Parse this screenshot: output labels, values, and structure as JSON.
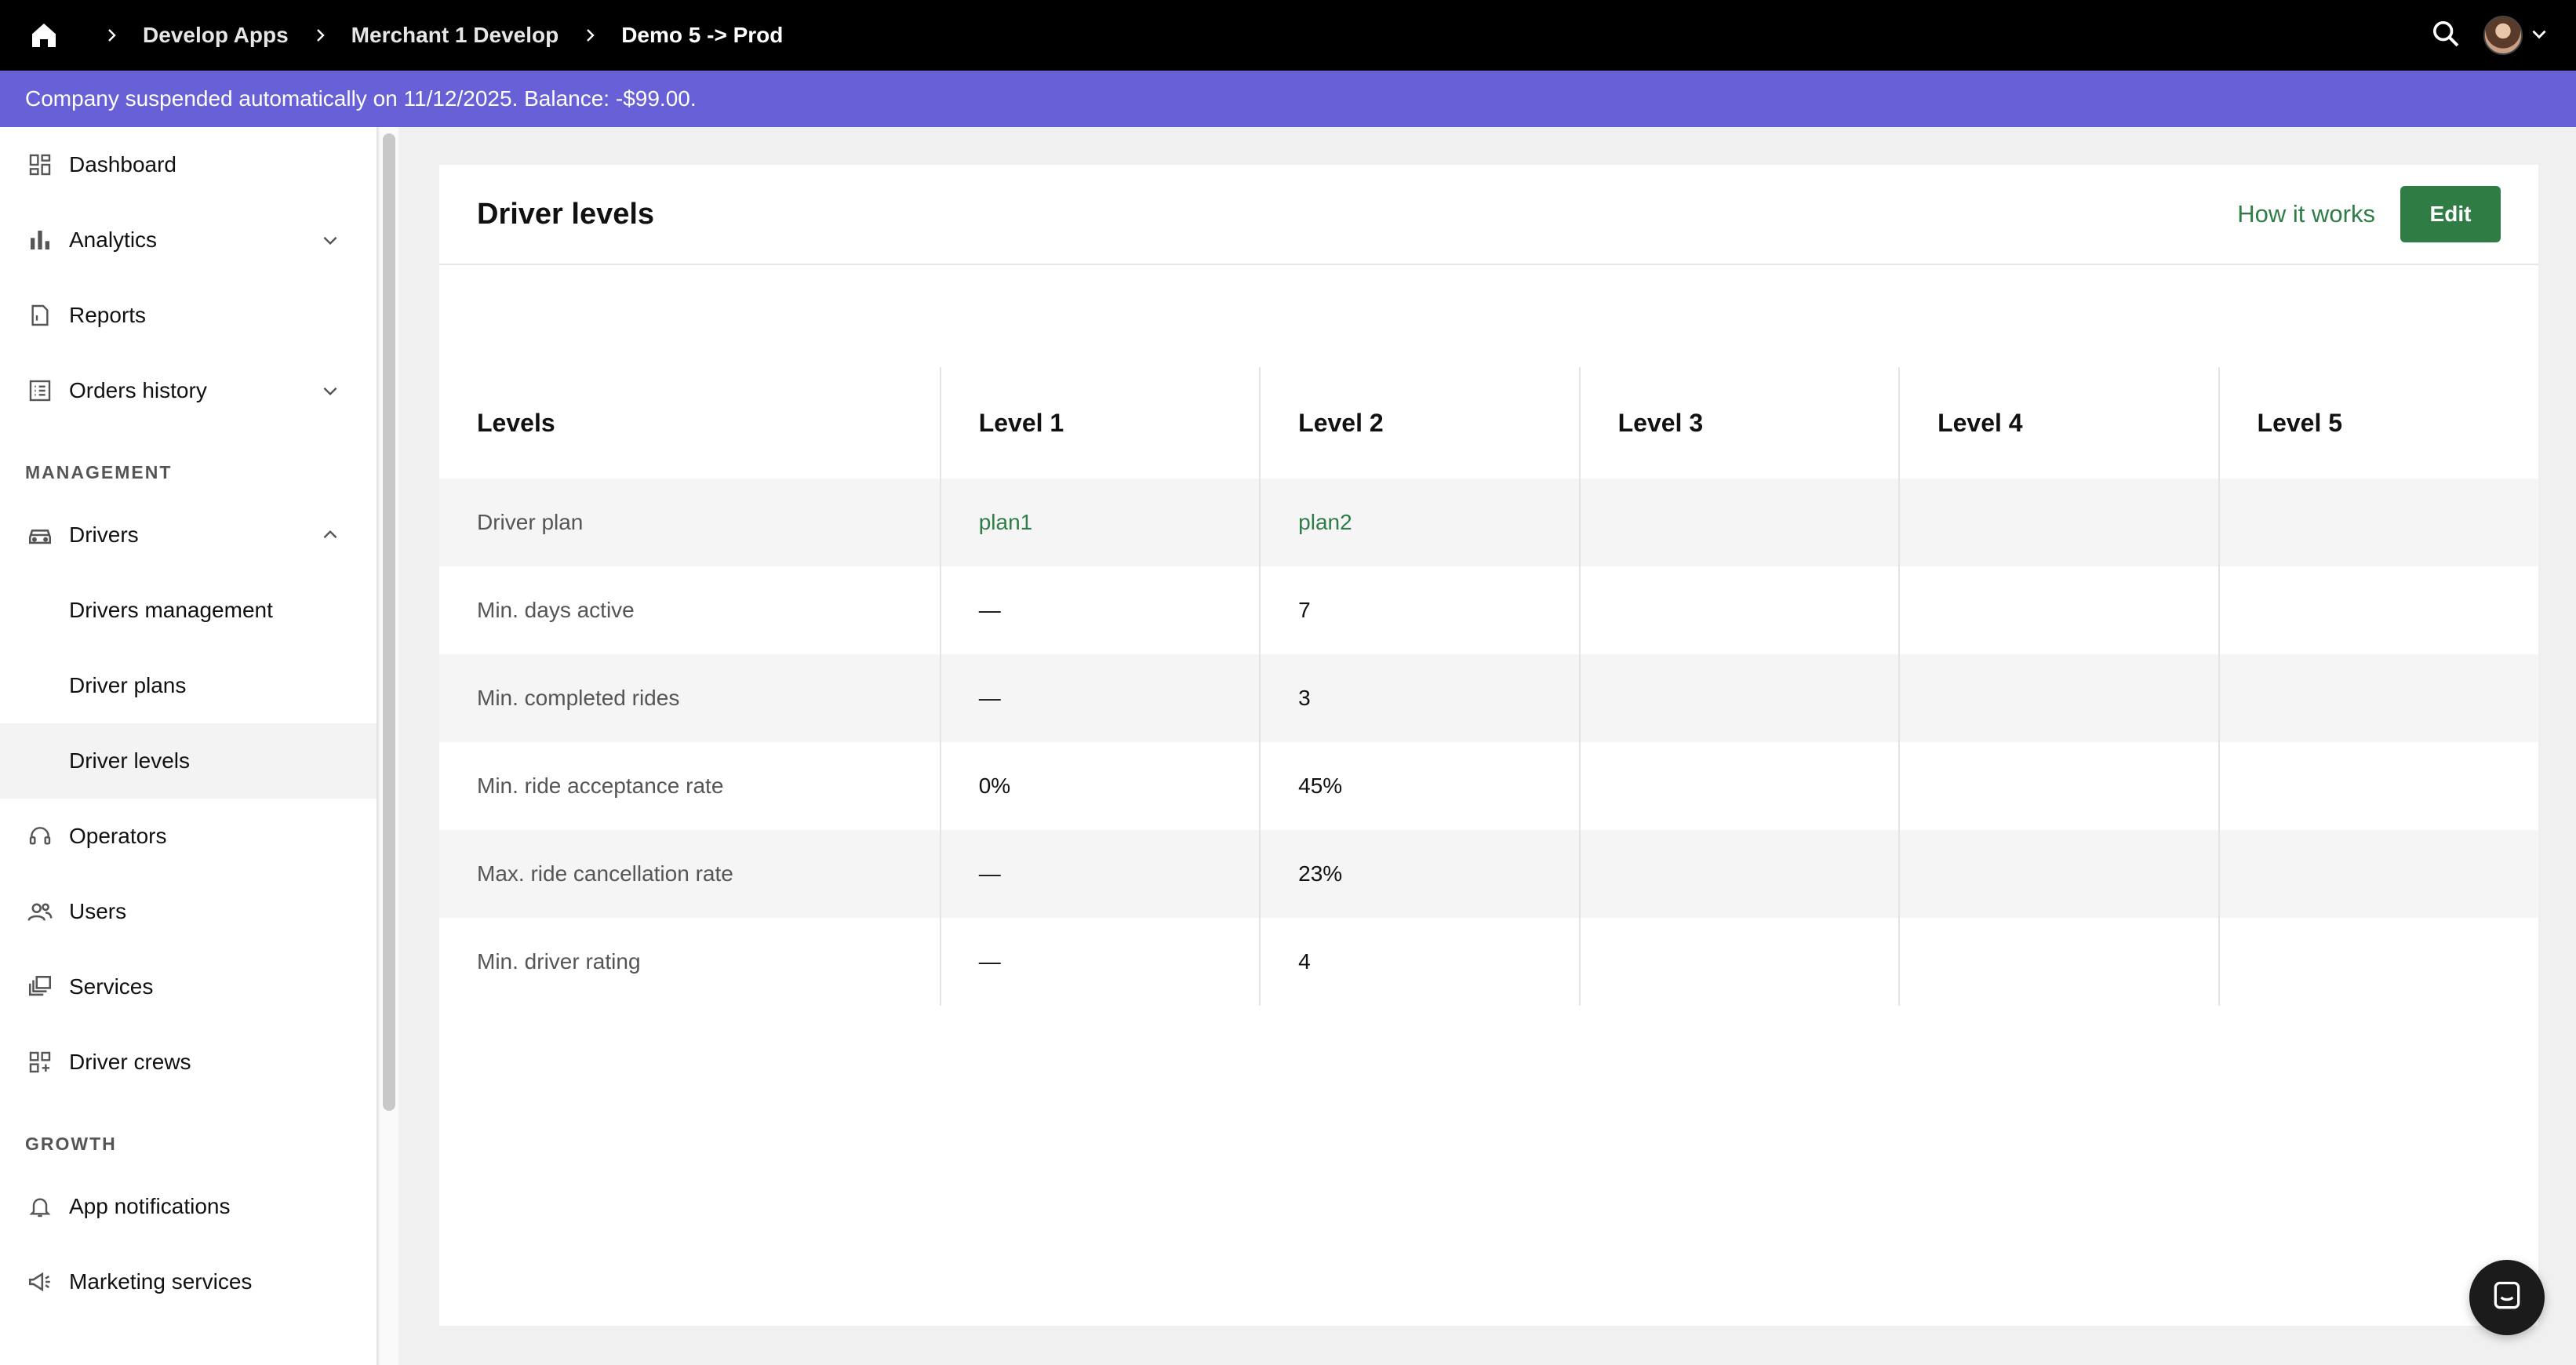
{
  "breadcrumbs": [
    "Develop Apps",
    "Merchant 1 Develop",
    "Demo 5 -> Prod"
  ],
  "banner": "Company suspended automatically on 11/12/2025. Balance: -$99.00.",
  "sidebar": {
    "items_top": [
      {
        "label": "Dashboard",
        "icon": "dashboard-icon"
      },
      {
        "label": "Analytics",
        "icon": "bar-chart-icon"
      },
      {
        "label": "Reports",
        "icon": "report-icon"
      },
      {
        "label": "Orders history",
        "icon": "list-icon"
      }
    ],
    "management_label": "MANAGEMENT",
    "items_management": [
      {
        "label": "Drivers",
        "icon": "car-icon"
      },
      {
        "label": "Drivers management"
      },
      {
        "label": "Driver plans"
      },
      {
        "label": "Driver levels"
      },
      {
        "label": "Operators",
        "icon": "headset-icon"
      },
      {
        "label": "Users",
        "icon": "users-icon"
      },
      {
        "label": "Services",
        "icon": "services-icon"
      },
      {
        "label": "Driver crews",
        "icon": "grid-plus-icon"
      }
    ],
    "growth_label": "GROWTH",
    "items_growth": [
      {
        "label": "App notifications",
        "icon": "bell-icon"
      },
      {
        "label": "Marketing services",
        "icon": "megaphone-icon"
      }
    ]
  },
  "page": {
    "title": "Driver levels",
    "how_it_works": "How it works",
    "edit": "Edit"
  },
  "table": {
    "headers": [
      "Levels",
      "Level 1",
      "Level 2",
      "Level 3",
      "Level 4",
      "Level 5"
    ],
    "rows": [
      {
        "label": "Driver plan",
        "l1": "plan1",
        "l2": "plan2"
      },
      {
        "label": "Min. days active",
        "l1": "—",
        "l2": "7"
      },
      {
        "label": "Min. completed rides",
        "l1": "—",
        "l2": "3"
      },
      {
        "label": "Min. ride acceptance rate",
        "l1": "0%",
        "l2": "45%"
      },
      {
        "label": "Max. ride cancellation rate",
        "l1": "—",
        "l2": "23%"
      },
      {
        "label": "Min. driver rating",
        "l1": "—",
        "l2": "4"
      }
    ]
  }
}
